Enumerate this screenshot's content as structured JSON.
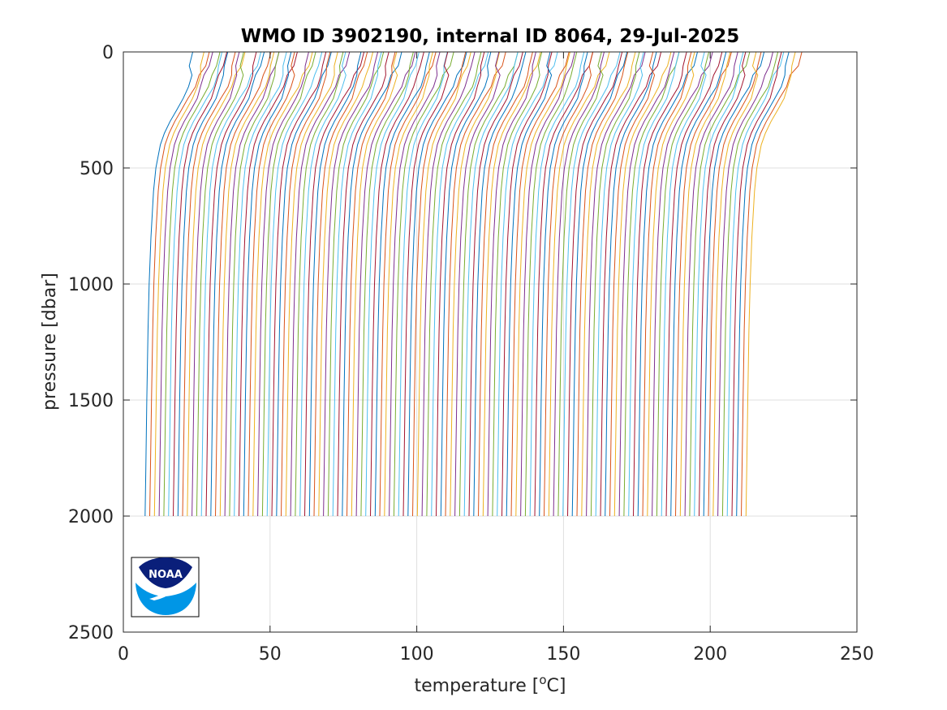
{
  "chart_data": {
    "type": "line",
    "title": "WMO ID 3902190, internal ID 8064, 29-Jul-2025",
    "xlabel": "temperature [",
    "xlabel_unit_super": "o",
    "xlabel_unit_end": "C]",
    "ylabel": "pressure [dbar]",
    "xlim": [
      0,
      250
    ],
    "ylim": [
      0,
      2500
    ],
    "y_reversed": true,
    "x_ticks": [
      "0",
      "50",
      "100",
      "150",
      "200",
      "250"
    ],
    "y_ticks": [
      "0",
      "500",
      "1000",
      "1500",
      "2000",
      "2500"
    ],
    "grid": true,
    "n_profiles": 129,
    "profile_offset_step": 1.6,
    "profile_first_deep_temperature": 7.4,
    "profile_bottom_pressure": 2000,
    "profile_shape": {
      "pressure": [
        0,
        20,
        60,
        100,
        150,
        200,
        250,
        300,
        350,
        400,
        500,
        600,
        800,
        1000,
        1200,
        1500,
        1800,
        2000
      ],
      "relative_temperature": [
        18.0,
        17.6,
        16.8,
        16.0,
        14.8,
        13.0,
        10.8,
        8.5,
        6.6,
        5.2,
        3.7,
        2.9,
        2.0,
        1.4,
        1.0,
        0.6,
        0.25,
        0.0
      ]
    },
    "series_colors": [
      "#0072bd",
      "#d95319",
      "#edb120",
      "#7e2f8e",
      "#77ac30",
      "#4dbeee",
      "#a2142f"
    ]
  },
  "logo": {
    "text": "NOAA",
    "colors": {
      "dark": "#0a1f7a",
      "light": "#0096e6"
    }
  }
}
